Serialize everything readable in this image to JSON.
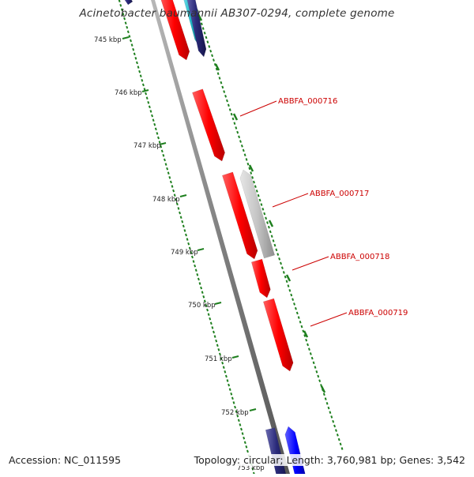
{
  "title": "Acinetobacter baumannii AB307-0294, complete genome",
  "footer": {
    "accession": "Accession: NC_011595",
    "summary": "Topology: circular; Length: 3,760,981 bp; Genes: 3,542"
  },
  "colors": {
    "gene_primary": "#ff0000",
    "gene_gray": "#c0c0c0",
    "gene_navy": "#2a2a7a",
    "gene_blue": "#0000ff",
    "gene_teal": "#21b9c9",
    "ruler_ticks": "#1e7f1e",
    "backbone": "#808080",
    "label_red": "#cc0000"
  },
  "ruler": {
    "ticks_kbp": [
      "745 kbp",
      "746 kbp",
      "747 kbp",
      "748 kbp",
      "749 kbp",
      "750 kbp",
      "751 kbp",
      "752 kbp",
      "753 kbp"
    ]
  },
  "gene_labels": [
    "ABBFA_000716",
    "ABBFA_000717",
    "ABBFA_000718",
    "ABBFA_000719"
  ]
}
